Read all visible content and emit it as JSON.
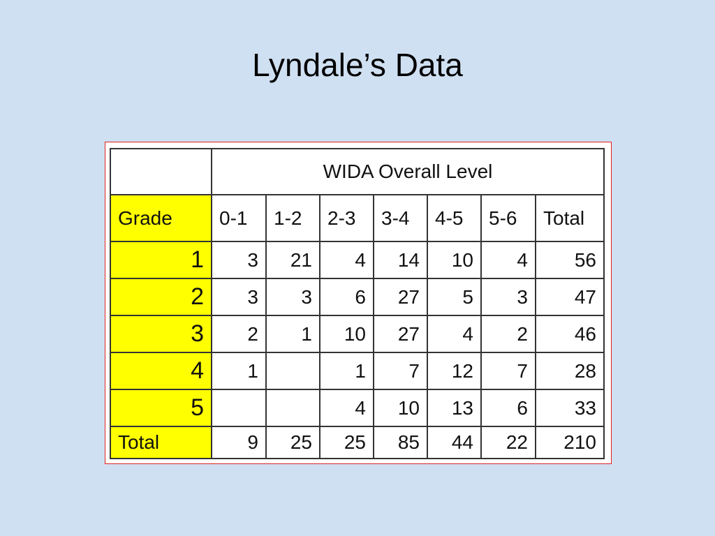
{
  "title": "Lyndale’s Data",
  "table": {
    "group_header": "WIDA Overall Level",
    "columns": [
      "Grade",
      "0-1",
      "1-2",
      "2-3",
      "3-4",
      "4-5",
      "5-6",
      "Total"
    ],
    "rows": [
      [
        1,
        3,
        21,
        4,
        14,
        10,
        4,
        56
      ],
      [
        2,
        3,
        3,
        6,
        27,
        5,
        3,
        47
      ],
      [
        3,
        2,
        1,
        10,
        27,
        4,
        2,
        46
      ],
      [
        4,
        1,
        null,
        1,
        7,
        12,
        7,
        28
      ],
      [
        5,
        null,
        null,
        4,
        10,
        13,
        6,
        33
      ],
      [
        "Total",
        9,
        25,
        25,
        85,
        44,
        22,
        210
      ]
    ]
  }
}
